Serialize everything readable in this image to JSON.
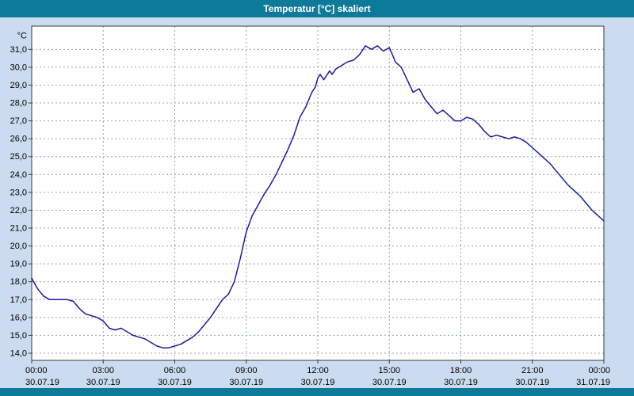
{
  "window": {
    "title": "Temperatur [°C] skaliert"
  },
  "colors": {
    "titlebar": "#0e7a99",
    "background": "#ccdcf0",
    "plot_background": "#ffffff",
    "plot_border": "#3a3a3a",
    "grid": "#8fa3b8",
    "line": "#1c1c9c",
    "tick_text": "#000000"
  },
  "chart_data": {
    "type": "line",
    "title": "Temperatur [°C] skaliert",
    "ylabel_unit": "°C",
    "grid": "dashed",
    "legend": "none",
    "xlim_hours": [
      0,
      24
    ],
    "ylim": [
      13.6,
      32.3
    ],
    "y_axis": {
      "unit": "°C",
      "ticks": [
        "14,0",
        "15,0",
        "16,0",
        "17,0",
        "18,0",
        "19,0",
        "20,0",
        "21,0",
        "22,0",
        "23,0",
        "24,0",
        "25,0",
        "26,0",
        "27,0",
        "28,0",
        "29,0",
        "30,0",
        "31,0"
      ]
    },
    "x_axis": {
      "ticks": [
        {
          "hour": 0,
          "time": "00:00",
          "date": "30.07.19"
        },
        {
          "hour": 3,
          "time": "03:00",
          "date": "30.07.19"
        },
        {
          "hour": 6,
          "time": "06:00",
          "date": "30.07.19"
        },
        {
          "hour": 9,
          "time": "09:00",
          "date": "30.07.19"
        },
        {
          "hour": 12,
          "time": "12:00",
          "date": "30.07.19"
        },
        {
          "hour": 15,
          "time": "15:00",
          "date": "30.07.19"
        },
        {
          "hour": 18,
          "time": "18:00",
          "date": "30.07.19"
        },
        {
          "hour": 21,
          "time": "21:00",
          "date": "30.07.19"
        },
        {
          "hour": 24,
          "time": "00:00",
          "date": "31.07.19"
        }
      ]
    },
    "series": [
      {
        "name": "Temperatur [°C]",
        "points": [
          [
            0.0,
            18.2
          ],
          [
            0.25,
            17.6
          ],
          [
            0.5,
            17.2
          ],
          [
            0.75,
            17.0
          ],
          [
            1.0,
            17.0
          ],
          [
            1.25,
            17.0
          ],
          [
            1.5,
            17.0
          ],
          [
            1.75,
            16.9
          ],
          [
            2.0,
            16.5
          ],
          [
            2.25,
            16.2
          ],
          [
            2.5,
            16.1
          ],
          [
            2.75,
            16.0
          ],
          [
            3.0,
            15.8
          ],
          [
            3.25,
            15.4
          ],
          [
            3.5,
            15.3
          ],
          [
            3.75,
            15.4
          ],
          [
            4.0,
            15.2
          ],
          [
            4.25,
            15.0
          ],
          [
            4.5,
            14.9
          ],
          [
            4.75,
            14.8
          ],
          [
            5.0,
            14.6
          ],
          [
            5.25,
            14.4
          ],
          [
            5.5,
            14.3
          ],
          [
            5.75,
            14.3
          ],
          [
            6.0,
            14.4
          ],
          [
            6.25,
            14.5
          ],
          [
            6.5,
            14.7
          ],
          [
            6.75,
            14.9
          ],
          [
            7.0,
            15.2
          ],
          [
            7.25,
            15.6
          ],
          [
            7.5,
            16.0
          ],
          [
            7.75,
            16.5
          ],
          [
            8.0,
            17.0
          ],
          [
            8.25,
            17.3
          ],
          [
            8.5,
            18.0
          ],
          [
            8.75,
            19.3
          ],
          [
            9.0,
            20.8
          ],
          [
            9.25,
            21.7
          ],
          [
            9.5,
            22.3
          ],
          [
            9.75,
            22.9
          ],
          [
            10.0,
            23.4
          ],
          [
            10.25,
            24.0
          ],
          [
            10.5,
            24.7
          ],
          [
            10.75,
            25.4
          ],
          [
            11.0,
            26.2
          ],
          [
            11.25,
            27.2
          ],
          [
            11.5,
            27.8
          ],
          [
            11.75,
            28.6
          ],
          [
            11.9,
            28.9
          ],
          [
            12.0,
            29.4
          ],
          [
            12.1,
            29.6
          ],
          [
            12.25,
            29.3
          ],
          [
            12.5,
            29.8
          ],
          [
            12.6,
            29.6
          ],
          [
            12.75,
            29.9
          ],
          [
            13.0,
            30.1
          ],
          [
            13.25,
            30.3
          ],
          [
            13.5,
            30.4
          ],
          [
            13.75,
            30.7
          ],
          [
            14.0,
            31.2
          ],
          [
            14.25,
            31.0
          ],
          [
            14.5,
            31.2
          ],
          [
            14.75,
            30.9
          ],
          [
            15.0,
            31.1
          ],
          [
            15.1,
            30.8
          ],
          [
            15.25,
            30.3
          ],
          [
            15.5,
            30.0
          ],
          [
            15.75,
            29.3
          ],
          [
            16.0,
            28.6
          ],
          [
            16.25,
            28.8
          ],
          [
            16.5,
            28.2
          ],
          [
            16.75,
            27.8
          ],
          [
            17.0,
            27.4
          ],
          [
            17.25,
            27.6
          ],
          [
            17.5,
            27.3
          ],
          [
            17.75,
            27.0
          ],
          [
            18.0,
            27.0
          ],
          [
            18.25,
            27.2
          ],
          [
            18.5,
            27.1
          ],
          [
            18.75,
            26.8
          ],
          [
            19.0,
            26.4
          ],
          [
            19.25,
            26.1
          ],
          [
            19.5,
            26.2
          ],
          [
            19.75,
            26.1
          ],
          [
            20.0,
            26.0
          ],
          [
            20.25,
            26.1
          ],
          [
            20.5,
            26.0
          ],
          [
            20.75,
            25.8
          ],
          [
            21.0,
            25.5
          ],
          [
            21.25,
            25.2
          ],
          [
            21.5,
            24.9
          ],
          [
            21.75,
            24.6
          ],
          [
            22.0,
            24.2
          ],
          [
            22.25,
            23.8
          ],
          [
            22.5,
            23.4
          ],
          [
            22.75,
            23.1
          ],
          [
            23.0,
            22.8
          ],
          [
            23.25,
            22.4
          ],
          [
            23.5,
            22.0
          ],
          [
            23.75,
            21.7
          ],
          [
            24.0,
            21.4
          ]
        ]
      }
    ]
  }
}
